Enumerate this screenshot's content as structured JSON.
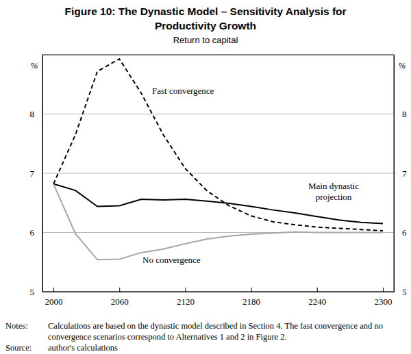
{
  "chart_data": {
    "type": "line",
    "title": "Figure 10: The Dynastic Model – Sensitivity Analysis for Productivity Growth",
    "subtitle": "Return to capital",
    "ylabel": "%",
    "x": [
      2000,
      2020,
      2040,
      2060,
      2080,
      2100,
      2120,
      2140,
      2160,
      2180,
      2200,
      2220,
      2240,
      2260,
      2280,
      2300
    ],
    "xlim": [
      1990,
      2310
    ],
    "xticks": [
      2000,
      2060,
      2120,
      2180,
      2240,
      2300
    ],
    "ylim": [
      5,
      9
    ],
    "yticks": [
      5,
      6,
      7,
      8
    ],
    "grid": true,
    "series": [
      {
        "name": "Main dynastic projection",
        "color": "#000000",
        "line_style": "solid",
        "values": [
          6.82,
          6.71,
          6.44,
          6.45,
          6.56,
          6.55,
          6.56,
          6.53,
          6.49,
          6.44,
          6.38,
          6.33,
          6.27,
          6.21,
          6.17,
          6.15
        ]
      },
      {
        "name": "Fast convergence",
        "color": "#000000",
        "line_style": "dashed",
        "values": [
          6.82,
          7.65,
          8.72,
          8.93,
          8.35,
          7.65,
          7.08,
          6.7,
          6.45,
          6.28,
          6.18,
          6.13,
          6.09,
          6.07,
          6.05,
          6.03
        ]
      },
      {
        "name": "No convergence",
        "color": "#a6a6a6",
        "line_style": "solid",
        "values": [
          6.82,
          5.98,
          5.54,
          5.55,
          5.66,
          5.72,
          5.81,
          5.89,
          5.94,
          5.97,
          5.99,
          6.01,
          6.0,
          6.0,
          6.0,
          6.0
        ]
      }
    ],
    "notes_label": "Notes:",
    "notes": "Calculations are based on the dynastic model described in Section 4. The fast convergence and no convergence scenarios correspond to Alternatives 1 and 2 in Figure 2.",
    "source_label": "Source:",
    "source": "author's calculations"
  }
}
